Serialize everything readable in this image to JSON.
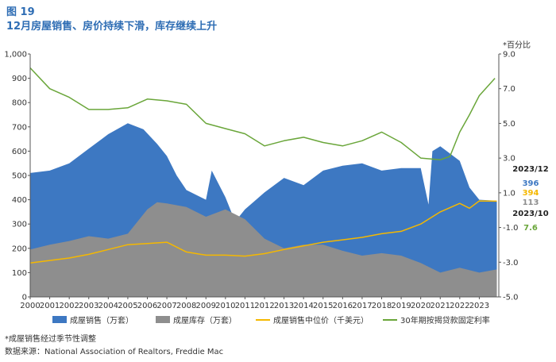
{
  "figure_number": "图 19",
  "figure_title": "12月房屋销售、房价持续下滑，库存继续上升",
  "footnote": "*成屋销售经过季节性调整",
  "source": "数据来源：National Association of Realtors, Freddie Mac",
  "chart_data": {
    "type": "area",
    "title": "12月房屋销售、房价持续下滑，库存继续上升",
    "x_tick_labels": [
      "2000",
      "2001",
      "2002",
      "2003",
      "2004",
      "2005",
      "2006",
      "2007",
      "2008",
      "2009",
      "2010",
      "2011",
      "2012",
      "2013",
      "2014",
      "2015",
      "2016",
      "2017",
      "2018",
      "2019",
      "2020",
      "2021",
      "2022",
      "2023"
    ],
    "xlim": [
      2000.0,
      2024.0
    ],
    "y_left": {
      "ylim": [
        0,
        1000
      ],
      "ticks": [
        "0",
        "100",
        "200",
        "300",
        "400",
        "500",
        "600",
        "700",
        "800",
        "900",
        "1,000"
      ]
    },
    "y_right": {
      "label": "*百分比",
      "ylim": [
        -5.0,
        9.0
      ],
      "ticks": [
        "-5.0",
        "-3.0",
        "-1.0",
        "1.0",
        "3.0",
        "5.0",
        "7.0",
        "9.0"
      ]
    },
    "legend": [
      "成屋销售（万套）",
      "成屋库存（万套）",
      "成屋销售中位价（千美元）",
      "30年期按揭贷款固定利率"
    ],
    "colors": {
      "sales": "#3d78c2",
      "inventory": "#8e8e8e",
      "price": "#f5b800",
      "rate": "#6aa63a"
    },
    "series": [
      {
        "name": "成屋销售（万套）",
        "axis": "left",
        "style": "area",
        "x": [
          2000,
          2001,
          2002,
          2003,
          2004,
          2005,
          2005.8,
          2006.5,
          2007,
          2007.5,
          2008,
          2009,
          2009.3,
          2010,
          2010.5,
          2011,
          2012,
          2013,
          2014,
          2015,
          2016,
          2017,
          2018,
          2019,
          2020,
          2020.4,
          2020.6,
          2021,
          2022,
          2022.5,
          2023,
          2023.9
        ],
        "values": [
          510,
          520,
          550,
          610,
          670,
          715,
          690,
          630,
          580,
          500,
          440,
          400,
          520,
          410,
          310,
          360,
          430,
          490,
          460,
          520,
          540,
          550,
          520,
          530,
          530,
          380,
          600,
          620,
          560,
          450,
          400,
          396
        ]
      },
      {
        "name": "成屋库存（万套）",
        "axis": "left",
        "style": "area",
        "x": [
          2000,
          2001,
          2002,
          2003,
          2004,
          2005,
          2006,
          2006.5,
          2007,
          2008,
          2009,
          2010,
          2011,
          2012,
          2013,
          2014,
          2015,
          2016,
          2017,
          2018,
          2019,
          2020,
          2021,
          2022,
          2023,
          2023.9
        ],
        "values": [
          195,
          215,
          230,
          250,
          240,
          260,
          360,
          390,
          385,
          370,
          330,
          360,
          320,
          240,
          200,
          215,
          215,
          190,
          170,
          180,
          170,
          140,
          100,
          120,
          100,
          113
        ]
      },
      {
        "name": "成屋销售中位价（千美元）",
        "axis": "left",
        "style": "line",
        "x": [
          2000,
          2001,
          2002,
          2003,
          2004,
          2005,
          2006,
          2007,
          2008,
          2009,
          2010,
          2011,
          2012,
          2013,
          2014,
          2015,
          2016,
          2017,
          2018,
          2019,
          2020,
          2021,
          2022,
          2022.5,
          2023,
          2023.9
        ],
        "values": [
          140,
          150,
          160,
          175,
          195,
          215,
          220,
          225,
          185,
          172,
          172,
          168,
          178,
          195,
          210,
          225,
          235,
          245,
          260,
          270,
          300,
          350,
          385,
          365,
          395,
          394
        ]
      },
      {
        "name": "30年期按揭贷款固定利率",
        "axis": "right",
        "style": "line",
        "x": [
          2000,
          2001,
          2002,
          2003,
          2004,
          2005,
          2006,
          2007,
          2008,
          2009,
          2010,
          2011,
          2012,
          2013,
          2014,
          2015,
          2016,
          2017,
          2018,
          2019,
          2020,
          2021,
          2021.5,
          2022,
          2022.5,
          2023,
          2023.8
        ],
        "values": [
          8.2,
          7.0,
          6.5,
          5.8,
          5.8,
          5.9,
          6.4,
          6.3,
          6.1,
          5.0,
          4.7,
          4.4,
          3.7,
          4.0,
          4.2,
          3.9,
          3.7,
          4.0,
          4.5,
          3.9,
          3.0,
          2.9,
          3.1,
          4.5,
          5.5,
          6.6,
          7.6
        ]
      }
    ],
    "annotations": {
      "date_main": "2023/12",
      "sales_value": "396",
      "price_value": "394",
      "inventory_value": "113",
      "date_rate": "2023/10",
      "rate_value": "7.6"
    }
  }
}
